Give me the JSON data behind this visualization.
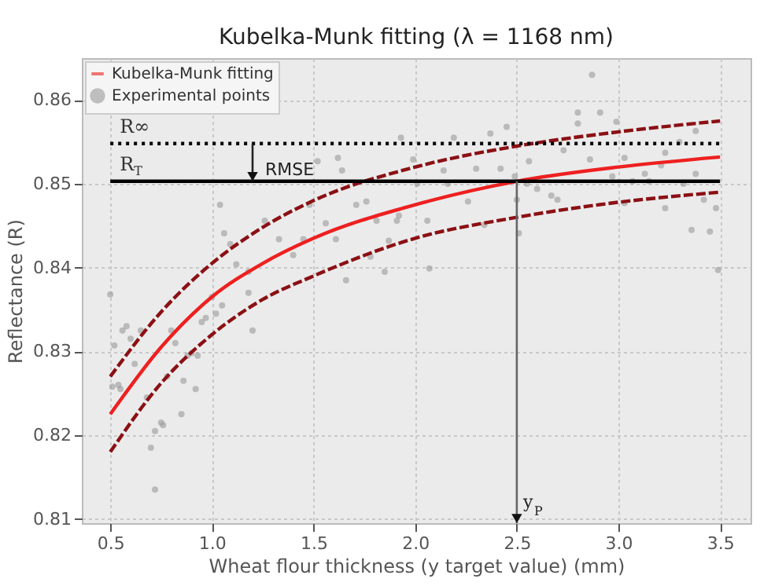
{
  "chart_data": {
    "type": "scatter",
    "title": "Kubelka-Munk fitting (λ = 1168 nm)",
    "xlabel": "Wheat flour thickness (y target value) (mm)",
    "ylabel": "Reflectance (R)",
    "xlim": [
      0.36,
      3.65
    ],
    "ylim": [
      0.8095,
      0.865
    ],
    "xticks": [
      0.5,
      {
        "value": 1,
        "label": "1.0"
      },
      1.5,
      {
        "value": 2,
        "label": "2.0"
      },
      2.5,
      {
        "value": 3,
        "label": "3.0"
      },
      3.5
    ],
    "yticks": [
      0.81,
      0.82,
      0.83,
      0.84,
      0.85,
      0.86
    ],
    "grid": true,
    "legend": "top left",
    "series": [
      {
        "name": "Kubelka-Munk fitting",
        "type": "line",
        "line_style": "solid",
        "color": "#ee2020",
        "x": [
          0.5,
          0.75,
          1.0,
          1.25,
          1.5,
          2.0,
          2.5,
          3.0,
          3.5
        ],
        "values": [
          0.8225,
          0.8305,
          0.8365,
          0.8405,
          0.8435,
          0.8475,
          0.8503,
          0.852,
          0.8532
        ]
      },
      {
        "type": "line",
        "line_style": "dashed",
        "color": "#8b1014",
        "x": [
          0.5,
          0.75,
          1.0,
          1.25,
          1.5,
          2.0,
          2.5,
          3.0,
          3.5
        ],
        "values": [
          0.827,
          0.8347,
          0.8405,
          0.8448,
          0.848,
          0.852,
          0.8545,
          0.8562,
          0.8575
        ]
      },
      {
        "type": "line",
        "line_style": "dashed",
        "color": "#8b1014",
        "x": [
          0.5,
          0.75,
          1.0,
          1.25,
          1.5,
          2.0,
          2.5,
          3.0,
          3.5
        ],
        "values": [
          0.818,
          0.8262,
          0.832,
          0.8362,
          0.839,
          0.8435,
          0.846,
          0.8478,
          0.849
        ]
      },
      {
        "name": "Experimental points",
        "marker": "circle",
        "color": "#9a9a9a",
        "x": [
          0.5,
          0.51,
          0.52,
          0.54,
          0.55,
          0.56,
          0.58,
          0.6,
          0.62,
          0.65,
          0.68,
          0.7,
          0.72,
          0.72,
          0.75,
          0.76,
          0.78,
          0.8,
          0.82,
          0.85,
          0.86,
          0.88,
          0.9,
          0.92,
          0.93,
          0.95,
          0.97,
          1.0,
          1.02,
          1.05,
          1.2,
          1.18,
          1.04,
          1.06,
          1.09,
          1.12,
          1.18,
          1.26,
          1.33,
          1.4,
          1.45,
          1.48,
          1.52,
          1.62,
          1.64,
          1.56,
          1.61,
          1.66,
          1.71,
          1.76,
          1.85,
          1.87,
          1.81,
          1.93,
          1.92,
          1.78,
          2.87,
          2.8,
          2.91,
          2.99,
          2.8,
          2.19,
          2.37,
          2.45,
          3.38,
          2.73,
          1.99,
          2.56,
          2.86,
          3.03,
          3.23,
          3.3,
          2.14,
          2.3,
          2.42,
          2.49,
          3.13,
          2.01,
          2.16,
          2.55,
          2.6,
          2.67,
          2.7,
          3.03,
          3.23,
          3.42,
          3.48,
          3.32,
          3.38,
          1.91,
          2.06,
          2.26,
          2.34,
          2.5,
          2.51,
          2.07,
          3.36,
          3.45,
          3.49,
          3.07,
          3.15,
          3.21,
          2.97
        ],
        "values": [
          0.8368,
          0.8258,
          0.8307,
          0.826,
          0.8255,
          0.8325,
          0.833,
          0.8315,
          0.8285,
          0.8325,
          0.8245,
          0.8185,
          0.8135,
          0.8205,
          0.8215,
          0.8212,
          0.827,
          0.8325,
          0.831,
          0.8225,
          0.8265,
          0.8295,
          0.8298,
          0.8255,
          0.8295,
          0.8335,
          0.834,
          0.8365,
          0.8345,
          0.8355,
          0.8325,
          0.837,
          0.8475,
          0.8441,
          0.8428,
          0.8404,
          0.8395,
          0.8456,
          0.8434,
          0.8415,
          0.8434,
          0.8475,
          0.8527,
          0.8531,
          0.8516,
          0.8453,
          0.8434,
          0.8385,
          0.8475,
          0.8479,
          0.8395,
          0.8432,
          0.8456,
          0.8555,
          0.8462,
          0.8413,
          0.863,
          0.8585,
          0.8585,
          0.8574,
          0.8572,
          0.8555,
          0.856,
          0.8568,
          0.8563,
          0.854,
          0.8529,
          0.8527,
          0.8529,
          0.8531,
          0.8537,
          0.855,
          0.8516,
          0.8518,
          0.8518,
          0.8509,
          0.8512,
          0.85,
          0.85,
          0.85,
          0.8494,
          0.8486,
          0.8481,
          0.8477,
          0.8471,
          0.8481,
          0.8471,
          0.85,
          0.8512,
          0.8456,
          0.8456,
          0.8479,
          0.8451,
          0.8481,
          0.8441,
          0.8399,
          0.8445,
          0.8443,
          0.8397,
          0.8503,
          0.8503,
          0.8522,
          0.8509
        ]
      }
    ],
    "ref_lines": [
      {
        "axis": "y",
        "value": 0.8548,
        "label": "R∞",
        "color": "#000000",
        "line_style": "dotted"
      },
      {
        "axis": "y",
        "value": 0.8503,
        "label": "R$_{T}$",
        "color": "#000000",
        "line_style": "solid"
      }
    ],
    "annotations": [
      {
        "text": "RMSE",
        "x": 1.2,
        "y": 0.8503
      },
      "y$_{P}$"
    ]
  }
}
